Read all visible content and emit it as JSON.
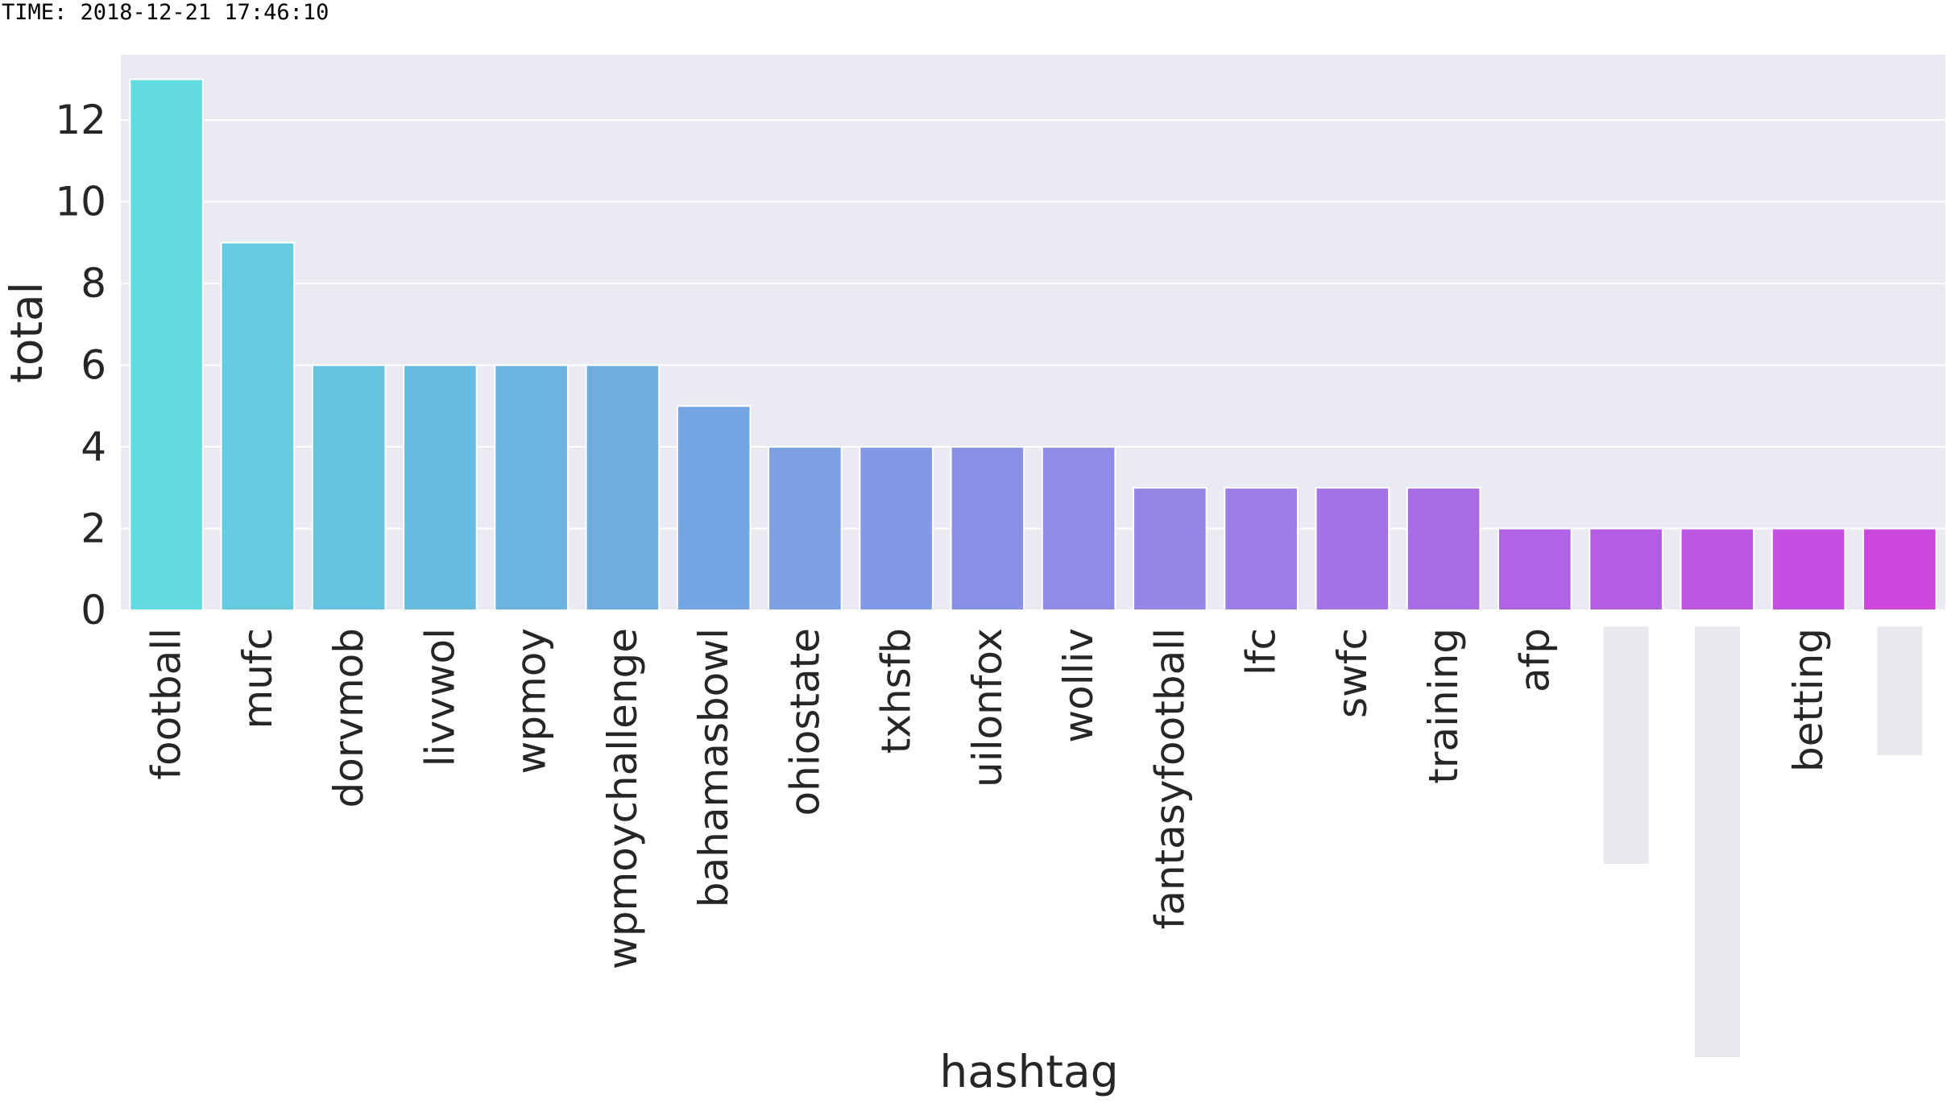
{
  "header": {
    "time_text": "TIME: 2018-12-21 17:46:10"
  },
  "chart_data": {
    "type": "bar",
    "title": "",
    "xlabel": "hashtag",
    "ylabel": "total",
    "ylim": [
      0,
      13.6
    ],
    "yticks": [
      0,
      2,
      4,
      6,
      8,
      10,
      12
    ],
    "grid": true,
    "background_color": "#eaeaf2",
    "palette": "cool",
    "categories": [
      "football",
      "mufc",
      "dorvmob",
      "livvwol",
      "wpmoy",
      "wpmoychallenge",
      "bahamasbowl",
      "ohiostate",
      "txhsfb",
      "uilonfox",
      "wolliv",
      "fantasyfootball",
      "lfc",
      "swfc",
      "training",
      "afp",
      "",
      "",
      "betting",
      ""
    ],
    "values": [
      13,
      9,
      6,
      6,
      6,
      6,
      5,
      4,
      4,
      4,
      4,
      3,
      3,
      3,
      3,
      2,
      2,
      2,
      2,
      2
    ],
    "colors": [
      "#64d9e0",
      "#64cbe0",
      "#65c3e0",
      "#69bce0",
      "#6cb3e0",
      "#71acdf",
      "#75a4e2",
      "#7da0e3",
      "#8299e6",
      "#8891e7",
      "#918be7",
      "#9784e7",
      "#9c7ce7",
      "#a373e6",
      "#a96ce5",
      "#b063e4",
      "#b55de2",
      "#bd55e2",
      "#c44fe2",
      "#cb47de"
    ],
    "hidden_label_indices": [
      16,
      17,
      19
    ]
  }
}
